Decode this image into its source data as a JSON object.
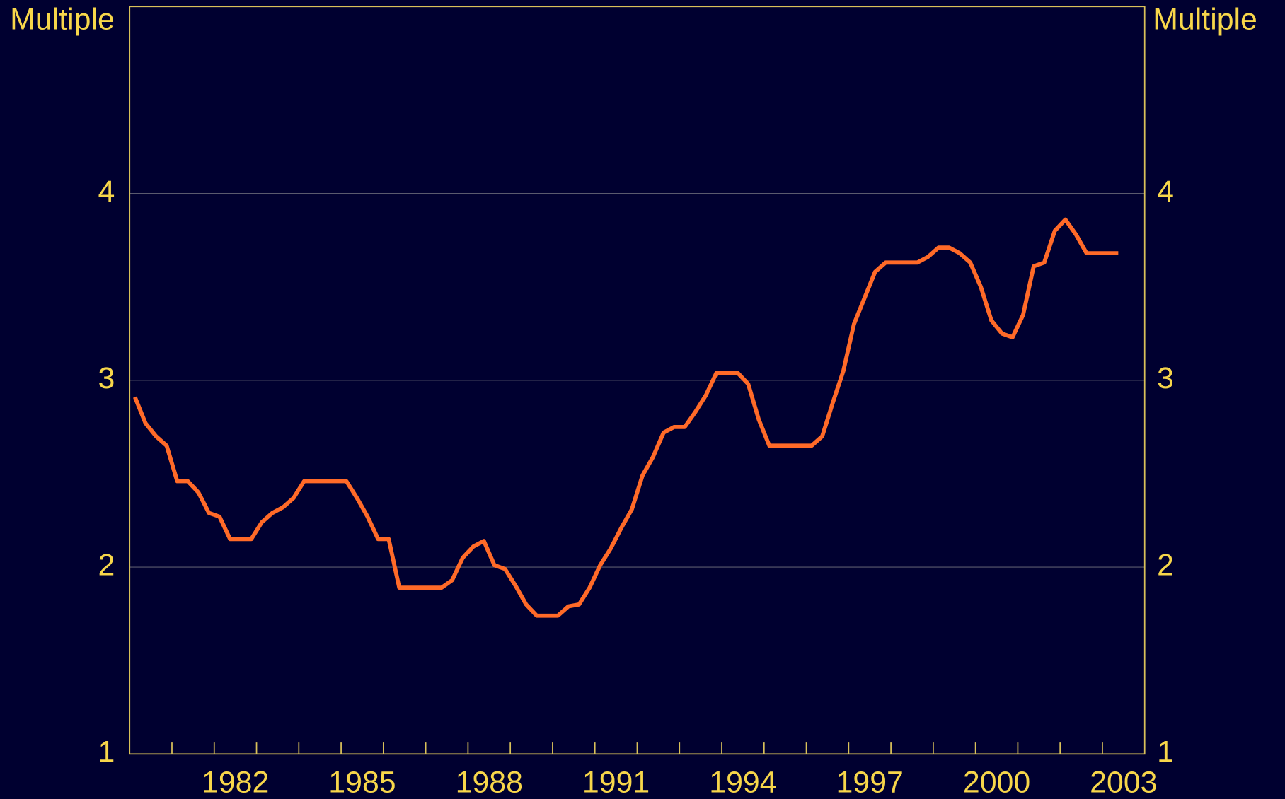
{
  "chart_data": {
    "type": "line",
    "y_label": "Multiple",
    "y2_label": "Multiple",
    "x": [
      1980.125,
      1980.375,
      1980.625,
      1980.875,
      1981.125,
      1981.375,
      1981.625,
      1981.875,
      1982.125,
      1982.375,
      1982.625,
      1982.875,
      1983.125,
      1983.375,
      1983.625,
      1983.875,
      1984.125,
      1984.375,
      1984.625,
      1984.875,
      1985.125,
      1985.375,
      1985.625,
      1985.875,
      1986.125,
      1986.375,
      1986.625,
      1986.875,
      1987.125,
      1987.375,
      1987.625,
      1987.875,
      1988.125,
      1988.375,
      1988.625,
      1988.875,
      1989.125,
      1989.375,
      1989.625,
      1989.875,
      1990.125,
      1990.375,
      1990.625,
      1990.875,
      1991.125,
      1991.375,
      1991.625,
      1991.875,
      1992.125,
      1992.375,
      1992.625,
      1992.875,
      1993.125,
      1993.375,
      1993.625,
      1993.875,
      1994.125,
      1994.375,
      1994.625,
      1994.875,
      1995.125,
      1995.375,
      1995.625,
      1995.875,
      1996.125,
      1996.375,
      1996.625,
      1996.875,
      1997.125,
      1997.375,
      1997.625,
      1997.875,
      1998.125,
      1998.375,
      1998.625,
      1998.875,
      1999.125,
      1999.375,
      1999.625,
      1999.875,
      2000.125,
      2000.375,
      2000.625,
      2000.875,
      2001.125,
      2001.375,
      2001.625,
      2001.875,
      2002.125,
      2002.375,
      2002.625,
      2002.875,
      2003.125,
      2003.375
    ],
    "series": [
      {
        "color": "#ff6a28",
        "values": [
          2.91,
          2.77,
          2.7,
          2.65,
          2.46,
          2.46,
          2.4,
          2.29,
          2.27,
          2.15,
          2.15,
          2.15,
          2.24,
          2.29,
          2.32,
          2.37,
          2.46,
          2.46,
          2.46,
          2.46,
          2.46,
          2.37,
          2.27,
          2.15,
          2.15,
          1.89,
          1.89,
          1.89,
          1.89,
          1.89,
          1.93,
          2.05,
          2.11,
          2.14,
          2.01,
          1.99,
          1.9,
          1.8,
          1.74,
          1.74,
          1.74,
          1.79,
          1.8,
          1.89,
          2.01,
          2.1,
          2.21,
          2.31,
          2.49,
          2.59,
          2.72,
          2.75,
          2.75,
          2.83,
          2.92,
          3.04,
          3.04,
          3.04,
          2.98,
          2.79,
          2.65,
          2.65,
          2.65,
          2.65,
          2.65,
          2.7,
          2.88,
          3.05,
          3.3,
          3.44,
          3.58,
          3.63,
          3.63,
          3.63,
          3.63,
          3.66,
          3.71,
          3.71,
          3.68,
          3.63,
          3.5,
          3.32,
          3.25,
          3.23,
          3.35,
          3.61,
          3.63,
          3.8,
          3.86,
          3.78,
          3.68,
          3.68,
          3.68,
          3.68
        ]
      }
    ],
    "xlim": [
      1980,
      2004
    ],
    "xticks": [
      {
        "value": 1982.5,
        "label": "1982"
      },
      {
        "value": 1985.5,
        "label": "1985"
      },
      {
        "value": 1988.5,
        "label": "1988"
      },
      {
        "value": 1991.5,
        "label": "1991"
      },
      {
        "value": 1994.5,
        "label": "1994"
      },
      {
        "value": 1997.5,
        "label": "1997"
      },
      {
        "value": 2000.5,
        "label": "2000"
      },
      {
        "value": 2003.5,
        "label": "2003"
      }
    ],
    "xminorticks": [
      1981,
      1982,
      1983,
      1984,
      1985,
      1986,
      1987,
      1988,
      1989,
      1990,
      1991,
      1992,
      1993,
      1994,
      1995,
      1996,
      1997,
      1998,
      1999,
      2000,
      2001,
      2002,
      2003
    ],
    "ylim": [
      1,
      5
    ],
    "yticks": [
      1,
      2,
      3,
      4
    ],
    "grid": true,
    "axis_color": "#d9c15a",
    "grid_color": "#5a5a6e"
  }
}
